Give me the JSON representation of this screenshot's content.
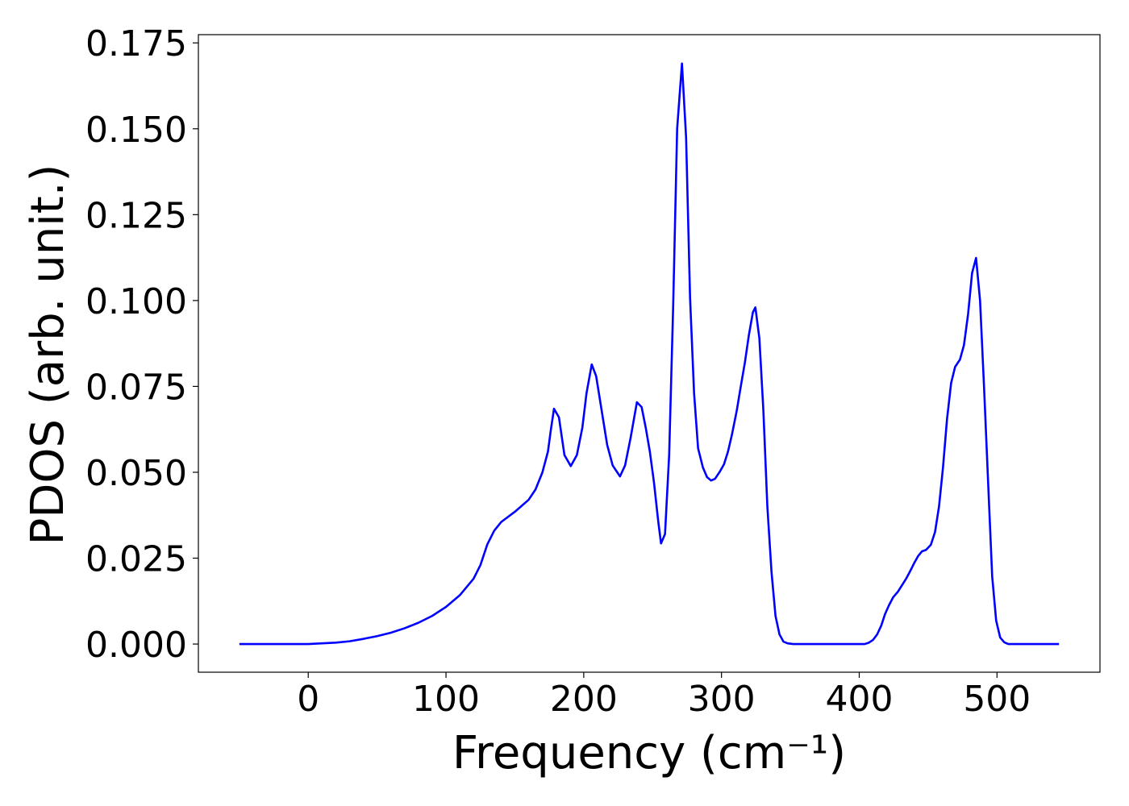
{
  "chart_data": {
    "type": "line",
    "xlabel": "Frequency (cm⁻¹)",
    "ylabel": "PDOS (arb. unit.)",
    "color": "#0000ff",
    "x": [
      -50,
      0,
      10,
      20,
      30,
      40,
      50,
      60,
      70,
      80,
      90,
      100,
      110,
      120,
      125,
      130,
      135,
      140,
      150,
      160,
      165,
      170,
      174,
      176,
      178.4,
      182,
      186,
      190.6,
      195,
      199,
      202,
      205.8,
      209,
      213,
      217,
      221,
      226.3,
      230,
      234,
      238.6,
      242,
      245,
      248,
      251,
      254,
      256.1,
      259,
      262,
      264.9,
      267.8,
      271.3,
      274.3,
      277.2,
      280.1,
      283,
      286.5,
      289.5,
      292.4,
      295.3,
      298.8,
      301.8,
      304.7,
      307.6,
      311.1,
      314,
      317,
      319.9,
      322.8,
      324.6,
      327.5,
      330.4,
      333.3,
      336.3,
      339.2,
      342.1,
      345,
      348,
      352,
      404,
      407,
      410,
      413,
      416,
      418.7,
      421.6,
      424.6,
      428,
      431,
      434,
      436.8,
      439.8,
      442.7,
      445.6,
      448.5,
      452,
      455,
      457.9,
      460.8,
      463.7,
      466.7,
      469.6,
      473.1,
      476,
      479,
      481.9,
      484.8,
      487.7,
      490.6,
      493.6,
      496.5,
      499.4,
      502.3,
      505.3,
      508.2,
      545
    ],
    "values": [
      0,
      0,
      0.0002,
      0.0004,
      0.0008,
      0.0015,
      0.0023,
      0.0033,
      0.0046,
      0.0062,
      0.0082,
      0.0108,
      0.0142,
      0.019,
      0.023,
      0.029,
      0.033,
      0.0355,
      0.0385,
      0.042,
      0.045,
      0.05,
      0.056,
      0.062,
      0.0685,
      0.066,
      0.055,
      0.0518,
      0.055,
      0.063,
      0.073,
      0.0814,
      0.078,
      0.068,
      0.058,
      0.052,
      0.0488,
      0.052,
      0.06,
      0.0704,
      0.069,
      0.063,
      0.056,
      0.047,
      0.036,
      0.0293,
      0.032,
      0.055,
      0.098,
      0.15,
      0.169,
      0.1475,
      0.1006,
      0.073,
      0.057,
      0.0514,
      0.0486,
      0.0476,
      0.0481,
      0.0502,
      0.0523,
      0.056,
      0.061,
      0.068,
      0.075,
      0.082,
      0.09,
      0.0966,
      0.098,
      0.089,
      0.068,
      0.04,
      0.021,
      0.0082,
      0.0028,
      0.0007,
      0.0002,
      0,
      0,
      0.0004,
      0.0012,
      0.0028,
      0.0054,
      0.0087,
      0.0113,
      0.0136,
      0.0152,
      0.0171,
      0.019,
      0.0211,
      0.0235,
      0.0256,
      0.027,
      0.0274,
      0.0289,
      0.0326,
      0.04,
      0.0514,
      0.0654,
      0.076,
      0.0807,
      0.0828,
      0.087,
      0.096,
      0.108,
      0.1124,
      0.1,
      0.0748,
      0.0467,
      0.0197,
      0.0068,
      0.0019,
      0.0005,
      0,
      0
    ],
    "xlim": [
      -79.75,
      574.75
    ],
    "ylim": [
      -0.0082,
      0.1774
    ],
    "xticks": [
      0,
      100,
      200,
      300,
      400,
      500
    ],
    "yticks": [
      {
        "value": 0,
        "label": "0.000"
      },
      {
        "value": 0.025,
        "label": "0.025"
      },
      {
        "value": 0.05,
        "label": "0.050"
      },
      {
        "value": 0.075,
        "label": "0.075"
      },
      {
        "value": 0.1,
        "label": "0.100"
      },
      {
        "value": 0.125,
        "label": "0.125"
      },
      {
        "value": 0.15,
        "label": "0.150"
      },
      {
        "value": 0.175,
        "label": "0.175"
      }
    ],
    "grid": false
  }
}
